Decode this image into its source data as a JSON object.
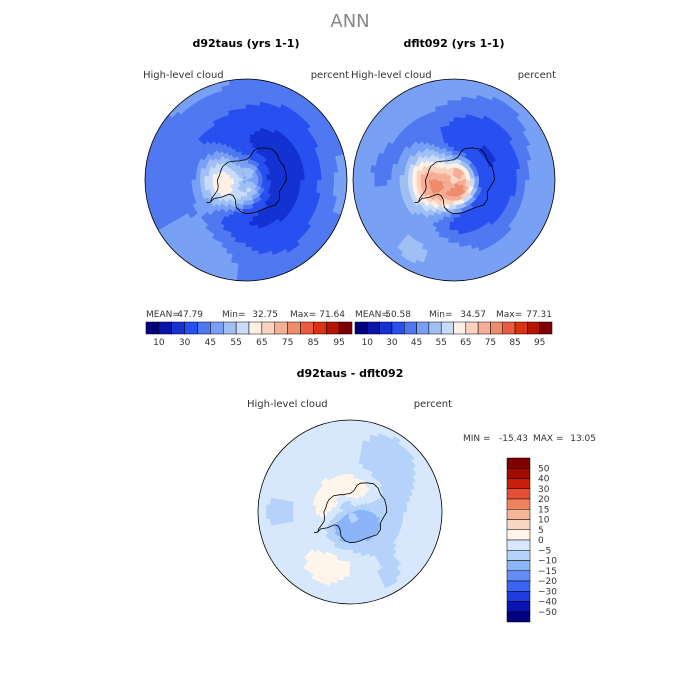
{
  "page_title": "ANN",
  "colors": {
    "ocean_fallback": "#5a8cf0",
    "outline": "#000000",
    "coast": "#000000"
  },
  "chart_data": [
    {
      "type": "heatmap",
      "projection": "south-polar-stereographic",
      "title": "d92taus (yrs 1-1)",
      "variable": "High-level cloud",
      "units": "percent",
      "stats": {
        "mean_label": "MEAN=",
        "mean": "47.79",
        "min_label": "Min=",
        "min": "32.75",
        "max_label": "Max=",
        "max": "71.64"
      },
      "colorbar": {
        "orientation": "horizontal",
        "levels": [
          10,
          20,
          30,
          40,
          45,
          50,
          55,
          60,
          65,
          70,
          75,
          80,
          85,
          90,
          95
        ],
        "tick_labels": [
          "10",
          "30",
          "45",
          "55",
          "65",
          "75",
          "85",
          "95"
        ],
        "colors": [
          "#00007f",
          "#0a14a6",
          "#1432d2",
          "#2850f0",
          "#5078f0",
          "#78a0f5",
          "#a0c0f5",
          "#c8dcfa",
          "#fff0e6",
          "#fad2be",
          "#f5af96",
          "#f08c6e",
          "#eb5a3c",
          "#dc3214",
          "#b41400",
          "#7f0000"
        ]
      },
      "field": {
        "base": 45,
        "blobs": [
          {
            "lon": 0,
            "lat": -68,
            "amp": -12,
            "spread": 9
          },
          {
            "lon": 90,
            "lat": -62,
            "amp": -10,
            "spread": 10
          },
          {
            "lon": 150,
            "lat": -70,
            "amp": -9,
            "spread": 10
          },
          {
            "lon": -70,
            "lat": -75,
            "amp": 14,
            "spread": 9
          },
          {
            "lon": -95,
            "lat": -72,
            "amp": 10,
            "spread": 8
          },
          {
            "lon": -30,
            "lat": -80,
            "amp": 7,
            "spread": 7
          },
          {
            "lon": 120,
            "lat": -55,
            "amp": -6,
            "spread": 12
          },
          {
            "lon": -150,
            "lat": -55,
            "amp": -7,
            "spread": 12
          },
          {
            "lon": 40,
            "lat": -55,
            "amp": -5,
            "spread": 12
          }
        ]
      }
    },
    {
      "type": "heatmap",
      "projection": "south-polar-stereographic",
      "title": "dflt092 (yrs 1-1)",
      "variable": "High-level cloud",
      "units": "percent",
      "stats": {
        "mean_label": "MEAN=",
        "mean": "50.58",
        "min_label": "Min=",
        "min": "34.57",
        "max_label": "Max=",
        "max": "77.31"
      },
      "colorbar": {
        "orientation": "horizontal",
        "levels": [
          10,
          20,
          30,
          40,
          45,
          50,
          55,
          60,
          65,
          70,
          75,
          80,
          85,
          90,
          95
        ],
        "tick_labels": [
          "10",
          "30",
          "45",
          "55",
          "65",
          "75",
          "85",
          "95"
        ],
        "colors": [
          "#00007f",
          "#0a14a6",
          "#1432d2",
          "#2850f0",
          "#5078f0",
          "#78a0f5",
          "#a0c0f5",
          "#c8dcfa",
          "#fff0e6",
          "#fad2be",
          "#f5af96",
          "#f08c6e",
          "#eb5a3c",
          "#dc3214",
          "#b41400",
          "#7f0000"
        ]
      },
      "field": {
        "base": 48,
        "blobs": [
          {
            "lon": 0,
            "lat": -68,
            "amp": -12,
            "spread": 9
          },
          {
            "lon": 90,
            "lat": -62,
            "amp": -10,
            "spread": 10
          },
          {
            "lon": 150,
            "lat": -70,
            "amp": -8,
            "spread": 10
          },
          {
            "lon": -70,
            "lat": -75,
            "amp": 18,
            "spread": 9
          },
          {
            "lon": -30,
            "lat": -80,
            "amp": 15,
            "spread": 8
          },
          {
            "lon": 80,
            "lat": -82,
            "amp": 14,
            "spread": 6
          },
          {
            "lon": -100,
            "lat": -70,
            "amp": 10,
            "spread": 8
          },
          {
            "lon": -150,
            "lat": -55,
            "amp": -6,
            "spread": 12
          },
          {
            "lon": 120,
            "lat": -55,
            "amp": -5,
            "spread": 12
          }
        ]
      }
    },
    {
      "type": "heatmap",
      "projection": "south-polar-stereographic",
      "title": "d92taus - dflt092",
      "variable": "High-level cloud",
      "units": "percent",
      "stats": {
        "min_label": "MIN =",
        "min": "-15.43",
        "max_label": "MAX =",
        "max": "13.05"
      },
      "colorbar": {
        "orientation": "vertical",
        "levels": [
          -50,
          -40,
          -30,
          -20,
          -15,
          -10,
          -5,
          0,
          5,
          10,
          15,
          20,
          30,
          40,
          50
        ],
        "tick_labels": [
          "50",
          "40",
          "30",
          "20",
          "15",
          "10",
          "5",
          "0",
          "−5",
          "−10",
          "−15",
          "−20",
          "−30",
          "−40",
          "−50"
        ],
        "colors": [
          "#00007f",
          "#0a14b4",
          "#1e3cdc",
          "#3c64f0",
          "#648cf5",
          "#8cb4f8",
          "#b4d2fa",
          "#d7e8fc",
          "#fff5eb",
          "#fad7c3",
          "#f5b496",
          "#f0825f",
          "#e65032",
          "#c81e0a",
          "#a00a00",
          "#7f0000"
        ]
      },
      "field": {
        "base": -3,
        "blobs": [
          {
            "lon": 60,
            "lat": -75,
            "amp": -8,
            "spread": 10
          },
          {
            "lon": -20,
            "lat": -80,
            "amp": -7,
            "spread": 8
          },
          {
            "lon": -120,
            "lat": -75,
            "amp": 7,
            "spread": 8
          },
          {
            "lon": 150,
            "lat": -72,
            "amp": 6,
            "spread": 8
          },
          {
            "lon": -10,
            "lat": -52,
            "amp": 4,
            "spread": 7
          },
          {
            "lon": 120,
            "lat": -55,
            "amp": -5,
            "spread": 10
          }
        ]
      }
    }
  ]
}
